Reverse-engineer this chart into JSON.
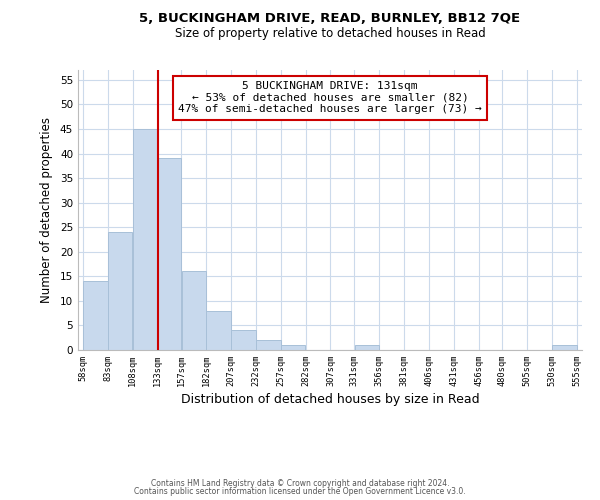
{
  "title_line1": "5, BUCKINGHAM DRIVE, READ, BURNLEY, BB12 7QE",
  "title_line2": "Size of property relative to detached houses in Read",
  "xlabel": "Distribution of detached houses by size in Read",
  "ylabel": "Number of detached properties",
  "bar_color": "#c8d9ed",
  "bar_edgecolor": "#a8c0d8",
  "vline_x": 133,
  "vline_color": "#cc0000",
  "annotation_title": "5 BUCKINGHAM DRIVE: 131sqm",
  "annotation_line2": "← 53% of detached houses are smaller (82)",
  "annotation_line3": "47% of semi-detached houses are larger (73) →",
  "annotation_box_edgecolor": "#cc0000",
  "bin_edges": [
    58,
    83,
    108,
    133,
    157,
    182,
    207,
    232,
    257,
    282,
    307,
    331,
    356,
    381,
    406,
    431,
    456,
    480,
    505,
    530,
    555
  ],
  "bar_heights": [
    14,
    24,
    45,
    39,
    16,
    8,
    4,
    2,
    1,
    0,
    0,
    1,
    0,
    0,
    0,
    0,
    0,
    0,
    0,
    1
  ],
  "ylim": [
    0,
    57
  ],
  "yticks": [
    0,
    5,
    10,
    15,
    20,
    25,
    30,
    35,
    40,
    45,
    50,
    55
  ],
  "footer_line1": "Contains HM Land Registry data © Crown copyright and database right 2024.",
  "footer_line2": "Contains public sector information licensed under the Open Government Licence v3.0.",
  "background_color": "#ffffff",
  "grid_color": "#ccdaeb"
}
